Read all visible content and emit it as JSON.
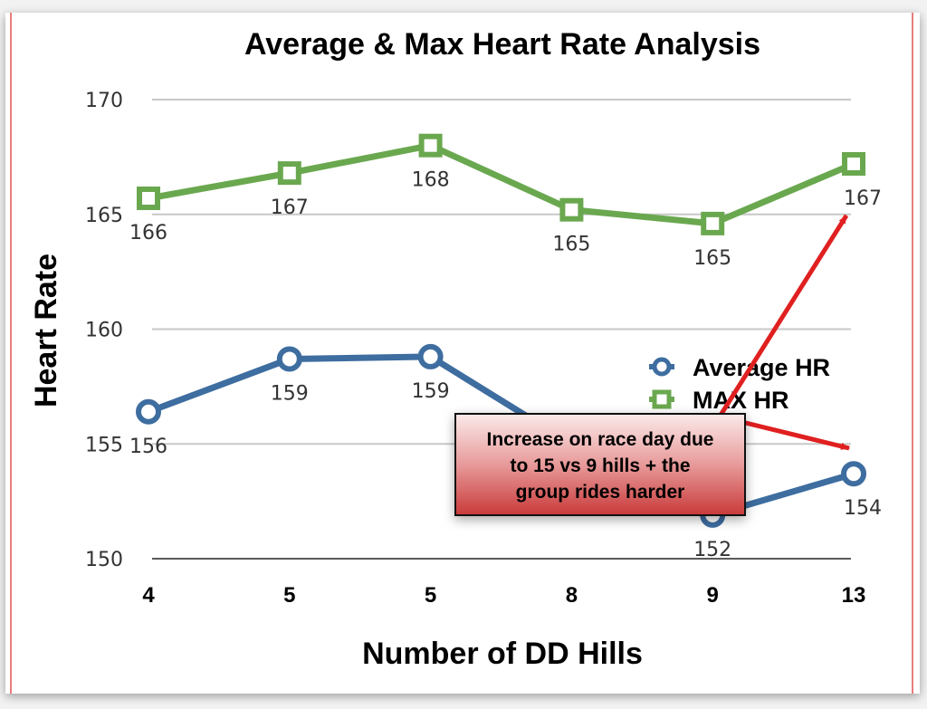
{
  "chart_data": {
    "type": "line",
    "title": "Average & Max Heart Rate Analysis",
    "xlabel": "Number of DD Hills",
    "ylabel": "Heart Rate",
    "categories": [
      "4",
      "5",
      "5",
      "8",
      "9",
      "13"
    ],
    "ylim": [
      150,
      170
    ],
    "yticks": [
      150,
      155,
      160,
      165,
      170
    ],
    "grid": true,
    "legend_position": "right",
    "series": [
      {
        "name": "Average HR",
        "color": "#3e6da0",
        "marker": "circle",
        "values": [
          156.4,
          158.7,
          158.8,
          155.0,
          151.9,
          153.7
        ],
        "labels": [
          "156",
          "159",
          "159",
          "",
          "152",
          "154"
        ]
      },
      {
        "name": "MAX HR",
        "color": "#6aa84f",
        "marker": "square",
        "values": [
          165.7,
          166.8,
          168.0,
          165.2,
          164.6,
          167.2
        ],
        "labels": [
          "166",
          "167",
          "168",
          "165",
          "165",
          "167"
        ]
      }
    ],
    "annotation": {
      "text_lines": [
        "Increase on race day due",
        "to 15 vs 9 hills + the",
        "group rides harder"
      ],
      "color": "#d9403f",
      "arrow_color": "#e02020"
    }
  }
}
